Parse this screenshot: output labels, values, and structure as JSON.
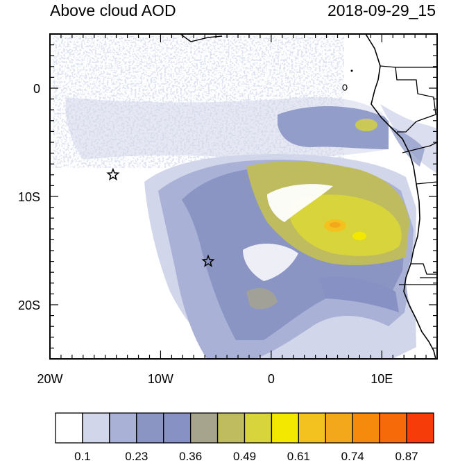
{
  "title_left": "Above cloud AOD",
  "title_right": "2018-09-29_15",
  "map": {
    "lon_range": [
      -20,
      15
    ],
    "lat_range": [
      -25,
      5
    ],
    "lon_ticks": [
      {
        "value": -20,
        "label": "20W"
      },
      {
        "value": -10,
        "label": "10W"
      },
      {
        "value": 0,
        "label": "0"
      },
      {
        "value": 10,
        "label": "10E"
      }
    ],
    "lat_ticks": [
      {
        "value": 0,
        "label": "0"
      },
      {
        "value": -10,
        "label": "10S"
      },
      {
        "value": -20,
        "label": "20S"
      }
    ],
    "markers": [
      {
        "name": "star-marker-north",
        "lon": -14.3,
        "lat": -8.0
      },
      {
        "name": "star-marker-south",
        "lon": -5.7,
        "lat": -16.0
      }
    ]
  },
  "colorbar": {
    "colors": [
      "#ffffff",
      "#d2d6ea",
      "#a9b1d6",
      "#8a95c4",
      "#8891c3",
      "#a6a48c",
      "#bfbc5f",
      "#d8d43c",
      "#f2e800",
      "#f4c21f",
      "#f3a81b",
      "#f58a0c",
      "#f66a0a",
      "#f63c08"
    ],
    "labels": [
      {
        "index": 1,
        "text": "0.1"
      },
      {
        "index": 3,
        "text": "0.23"
      },
      {
        "index": 5,
        "text": "0.36"
      },
      {
        "index": 7,
        "text": "0.49"
      },
      {
        "index": 9,
        "text": "0.61"
      },
      {
        "index": 11,
        "text": "0.74"
      },
      {
        "index": 13,
        "text": "0.87"
      }
    ]
  }
}
